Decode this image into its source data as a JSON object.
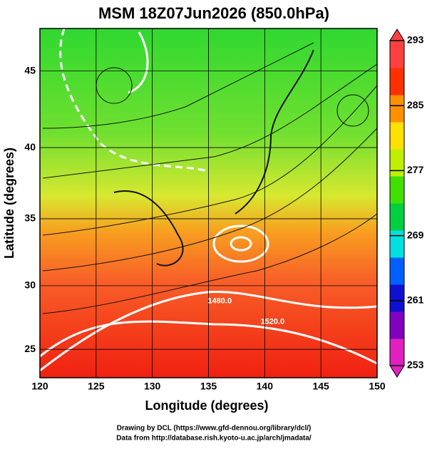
{
  "title": "MSM 18Z07Jun2026 (850.0hPa)",
  "x_axis": {
    "label": "Longitude (degrees)",
    "lim": [
      120,
      150
    ],
    "ticks": [
      120,
      125,
      130,
      135,
      140,
      145,
      150
    ]
  },
  "y_axis": {
    "label": "Latitude  (degrees)",
    "lim": [
      22.7,
      47.6
    ],
    "ticks": [
      25,
      30,
      35,
      40,
      45
    ],
    "projection": "mercator"
  },
  "colorbar": {
    "lim": [
      253,
      293
    ],
    "ticks": [
      253,
      261,
      269,
      277,
      285,
      293
    ],
    "colors": [
      "#e020c0",
      "#8000c0",
      "#1010d0",
      "#0060ff",
      "#00e0e0",
      "#00d040",
      "#40e000",
      "#c0f000",
      "#ffe000",
      "#ff9000",
      "#ff3000",
      "#ff4040"
    ]
  },
  "contour_labels": [
    {
      "text": "1480.0",
      "lon": 136.0,
      "lat": 28.8
    },
    {
      "text": "1520.0",
      "lon": 140.7,
      "lat": 27.2
    }
  ],
  "footer": [
    "Drawing by DCL (https://www.gfd-dennou.org/library/dcl/)",
    "Data from http://database.rish.kyoto-u.ac.jp/arch/jmadata/"
  ]
}
